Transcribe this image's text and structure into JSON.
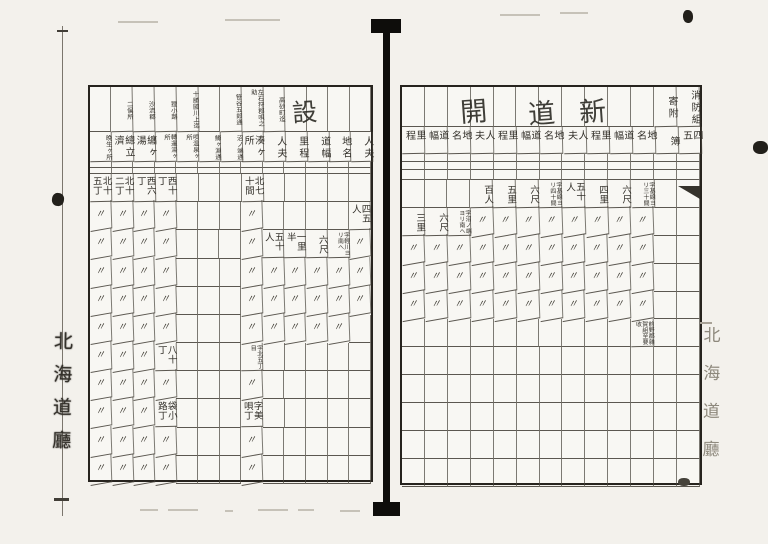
{
  "stamps": {
    "left_margin": "北海道廳",
    "right_margin": "北海道廳"
  },
  "ditto_mark": "〃",
  "left_page": {
    "big_char": "設",
    "header_names": [
      "",
      "二俣所",
      "沙流郡",
      "狸小路",
      "十勝國川上迄",
      "",
      "笹谷五郎通",
      "左石狩郡唄之助",
      "高砂町迄",
      "",
      "",
      "",
      ""
    ],
    "column_labels": [
      "晩生ヶ所",
      "總立濟",
      "纏ヶ湯",
      "轉運湯ヶ所",
      "唄温泉ヶ所",
      "鱒ヶ淵通",
      "沼ノ端通",
      "湊ヶ所",
      "人夫",
      "里程",
      "道幅",
      "地名",
      "人夫"
    ],
    "rows": [
      [
        "北十五丁",
        "北十二丁",
        "西六丁",
        "西十丁",
        "",
        "",
        "",
        "北七十間",
        "",
        "",
        "",
        "",
        ""
      ],
      [
        "〃",
        "〃",
        "〃",
        "〃",
        "",
        "",
        "",
        "〃",
        "",
        "",
        "",
        "",
        "四五人"
      ],
      [
        "〃",
        "〃",
        "〃",
        "〃",
        "",
        "",
        "",
        "〃",
        "五十人",
        "一里半",
        "六尺",
        "字輕川ヨリ南へ",
        "〃"
      ],
      [
        "〃",
        "〃",
        "〃",
        "〃",
        "",
        "",
        "",
        "〃",
        "〃",
        "〃",
        "〃",
        "〃",
        "〃"
      ],
      [
        "〃",
        "〃",
        "〃",
        "〃",
        "",
        "",
        "",
        "〃",
        "〃",
        "〃",
        "〃",
        "〃",
        "〃"
      ],
      [
        "〃",
        "〃",
        "〃",
        "〃",
        "",
        "",
        "",
        "〃",
        "〃",
        "〃",
        "〃",
        "〃",
        ""
      ],
      [
        "〃",
        "〃",
        "〃",
        "八十丁",
        "",
        "",
        "",
        "字北五丁目",
        "",
        "",
        "",
        "",
        ""
      ],
      [
        "〃",
        "〃",
        "〃",
        "〃",
        "",
        "",
        "",
        "〃",
        "",
        "",
        "",
        "",
        ""
      ],
      [
        "〃",
        "〃",
        "〃",
        "袋小路丁",
        "",
        "",
        "",
        "字美唄丁",
        "",
        "",
        "",
        "",
        ""
      ],
      [
        "〃",
        "〃",
        "〃",
        "〃",
        "",
        "",
        "",
        "〃",
        "",
        "",
        "",
        "",
        ""
      ],
      [
        "〃",
        "〃",
        "〃",
        "〃",
        "",
        "",
        "",
        "〃",
        "",
        "",
        "",
        "",
        ""
      ]
    ]
  },
  "right_page": {
    "title_chars": [
      "開",
      "道",
      "新"
    ],
    "header_top": [
      "",
      "",
      "",
      "",
      "",
      "",
      "",
      "",
      "",
      "",
      "",
      "寄附",
      "消防組"
    ],
    "column_labels": [
      "里程",
      "道幅",
      "地名",
      "人夫",
      "里程",
      "道幅",
      "地名",
      "人夫",
      "里程",
      "道幅",
      "地名",
      "簿",
      "四五"
    ],
    "rows": [
      [
        "",
        "",
        "",
        "百人",
        "五里",
        "六尺",
        "字基線ヨリ四十間",
        "五十人",
        "四里",
        "六尺",
        "字基線ヨリ三十間",
        "",
        ""
      ],
      [
        "三里",
        "六尺",
        "字沼ノ端ヨリ南へ",
        "〃",
        "〃",
        "〃",
        "〃",
        "〃",
        "〃",
        "〃",
        "〃",
        "",
        ""
      ],
      [
        "〃",
        "〃",
        "〃",
        "〃",
        "〃",
        "〃",
        "〃",
        "〃",
        "〃",
        "〃",
        "〃",
        "",
        ""
      ],
      [
        "〃",
        "〃",
        "〃",
        "〃",
        "〃",
        "〃",
        "〃",
        "〃",
        "〃",
        "〃",
        "〃",
        "",
        ""
      ],
      [
        "〃",
        "〃",
        "〃",
        "〃",
        "〃",
        "〃",
        "〃",
        "〃",
        "〃",
        "〃",
        "〃",
        "",
        ""
      ],
      [
        "",
        "",
        "",
        "",
        "",
        "",
        "",
        "",
        "",
        "",
        "前野郡雜賀組至要收",
        "",
        ""
      ],
      [
        "",
        "",
        "",
        "",
        "",
        "",
        "",
        "",
        "",
        "",
        "",
        "",
        ""
      ],
      [
        "",
        "",
        "",
        "",
        "",
        "",
        "",
        "",
        "",
        "",
        "",
        "",
        ""
      ],
      [
        "",
        "",
        "",
        "",
        "",
        "",
        "",
        "",
        "",
        "",
        "",
        "",
        ""
      ],
      [
        "",
        "",
        "",
        "",
        "",
        "",
        "",
        "",
        "",
        "",
        "",
        "",
        ""
      ],
      [
        "",
        "",
        "",
        "",
        "",
        "",
        "",
        "",
        "",
        "",
        "",
        "",
        ""
      ]
    ]
  }
}
